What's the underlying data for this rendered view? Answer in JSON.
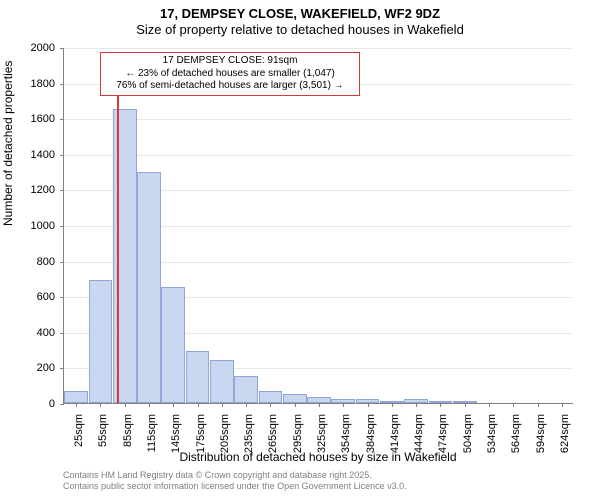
{
  "chart": {
    "type": "histogram",
    "title_line1": "17, DEMPSEY CLOSE, WAKEFIELD, WF2 9DZ",
    "title_line2": "Size of property relative to detached houses in Wakefield",
    "y_axis_title": "Number of detached properties",
    "x_axis_title": "Distribution of detached houses by size in Wakefield",
    "ylim": [
      0,
      2000
    ],
    "ytick_step": 200,
    "y_ticks": [
      0,
      200,
      400,
      600,
      800,
      1000,
      1200,
      1400,
      1600,
      1800,
      2000
    ],
    "x_categories": [
      "25sqm",
      "55sqm",
      "85sqm",
      "115sqm",
      "145sqm",
      "175sqm",
      "205sqm",
      "235sqm",
      "265sqm",
      "295sqm",
      "325sqm",
      "354sqm",
      "384sqm",
      "414sqm",
      "444sqm",
      "474sqm",
      "504sqm",
      "534sqm",
      "564sqm",
      "594sqm",
      "624sqm"
    ],
    "bar_values": [
      70,
      690,
      1650,
      1300,
      650,
      290,
      240,
      150,
      65,
      50,
      35,
      20,
      25,
      5,
      25,
      5,
      5,
      0,
      0,
      0,
      0
    ],
    "bar_fill": "#c9d6ef",
    "bar_border": "#8fa6d6",
    "marker": {
      "category_index": 2,
      "position_in_bin": 0.2,
      "color": "#d63a3a",
      "height_value": 1830
    },
    "annotation": {
      "line1": "17 DEMPSEY CLOSE: 91sqm",
      "line2": "← 23% of detached houses are smaller (1,047)",
      "line3": "76% of semi-detached houses are larger (3,501) →",
      "border_color": "#d63a3a"
    },
    "grid_color": "#e8e8e8",
    "axis_color": "#808080",
    "background_color": "#ffffff",
    "title_fontsize": 13,
    "axis_label_fontsize": 12,
    "tick_fontsize": 11,
    "annotation_fontsize": 10,
    "credits_fontsize": 9
  },
  "credits": {
    "line1": "Contains HM Land Registry data © Crown copyright and database right 2025.",
    "line2": "Contains public sector information licensed under the Open Government Licence v3.0."
  }
}
